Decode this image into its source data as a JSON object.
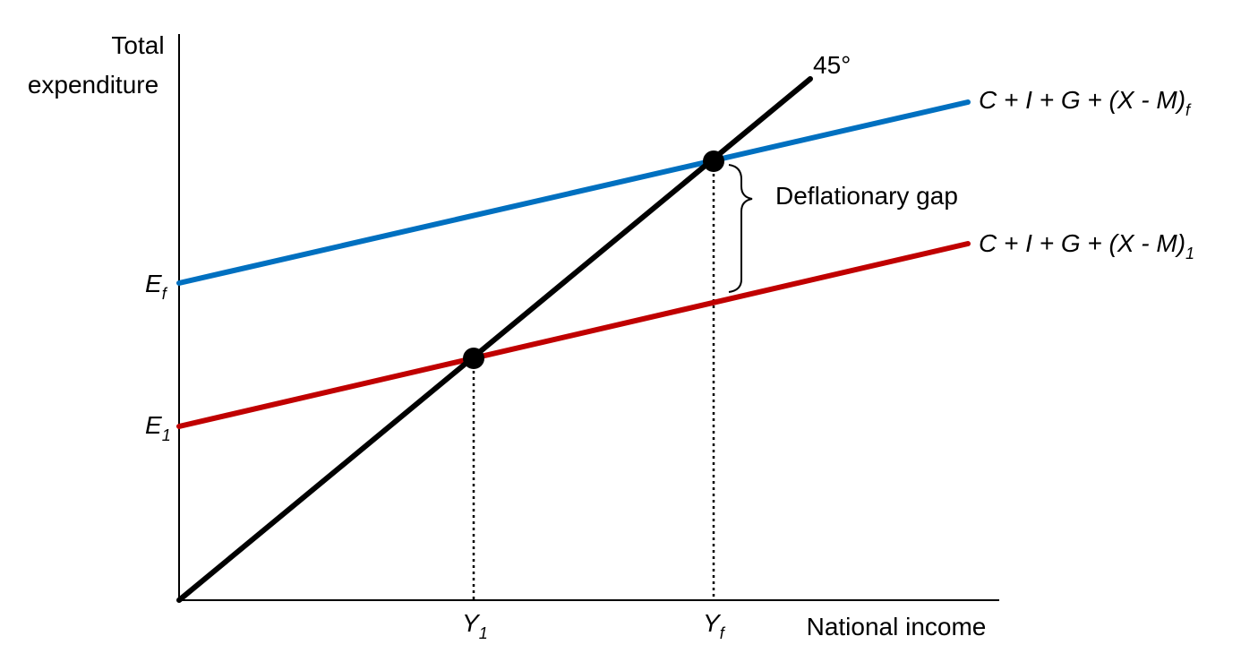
{
  "axes": {
    "y_label_line1": "Total",
    "y_label_line2": "expenditure",
    "x_label": "National income"
  },
  "diagonal": {
    "label": "45°"
  },
  "curves": {
    "full_employment": {
      "main": "C + I + G + (X - M)",
      "sub": "f",
      "color": "#0070c0"
    },
    "current": {
      "main": "C + I + G + (X - M)",
      "sub": "1",
      "color": "#c00000"
    }
  },
  "y_ticks": {
    "ef": {
      "main": "E",
      "sub": "f"
    },
    "e1": {
      "main": "E",
      "sub": "1"
    }
  },
  "x_ticks": {
    "y1": {
      "main": "Y",
      "sub": "1"
    },
    "yf": {
      "main": "Y",
      "sub": "f"
    }
  },
  "gap": {
    "label": "Deflationary gap"
  }
}
